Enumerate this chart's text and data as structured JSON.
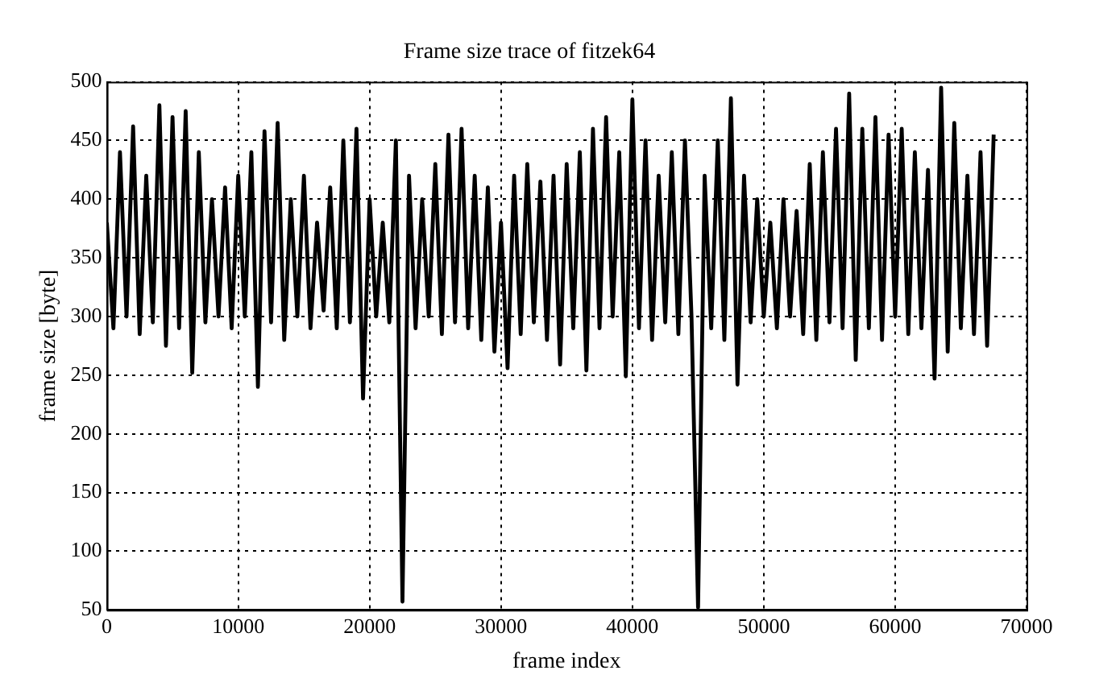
{
  "chart_data": {
    "type": "line",
    "title": "Frame size trace of fitzek64",
    "xlabel": "frame index",
    "ylabel": "frame size [byte]",
    "xlim": [
      0,
      70000
    ],
    "xticks": [
      0,
      10000,
      20000,
      30000,
      40000,
      50000,
      60000,
      70000
    ],
    "ylim": [
      50,
      500
    ],
    "yticks": [
      50,
      100,
      150,
      200,
      250,
      300,
      350,
      400,
      450,
      500
    ],
    "grid": true,
    "legend": false,
    "marker": "none",
    "line_style": "solid",
    "series": [
      {
        "color": "#000000",
        "x": [
          0,
          500,
          1000,
          1500,
          2000,
          2500,
          3000,
          3500,
          4000,
          4500,
          5000,
          5500,
          6000,
          6500,
          7000,
          7500,
          8000,
          8500,
          9000,
          9500,
          10000,
          10500,
          11000,
          11500,
          12000,
          12500,
          13000,
          13500,
          14000,
          14500,
          15000,
          15500,
          16000,
          16500,
          17000,
          17500,
          18000,
          18500,
          19000,
          19500,
          20000,
          20500,
          21000,
          21500,
          22000,
          22500,
          23000,
          23500,
          24000,
          24500,
          25000,
          25500,
          26000,
          26500,
          27000,
          27500,
          28000,
          28500,
          29000,
          29500,
          30000,
          30500,
          31000,
          31500,
          32000,
          32500,
          33000,
          33500,
          34000,
          34500,
          35000,
          35500,
          36000,
          36500,
          37000,
          37500,
          38000,
          38500,
          39000,
          39500,
          40000,
          40500,
          41000,
          41500,
          42000,
          42500,
          43000,
          43500,
          44000,
          44500,
          45000,
          45500,
          46000,
          46500,
          47000,
          47500,
          48000,
          48500,
          49000,
          49500,
          50000,
          50500,
          51000,
          51500,
          52000,
          52500,
          53000,
          53500,
          54000,
          54500,
          55000,
          55500,
          56000,
          56500,
          57000,
          57500,
          58000,
          58500,
          59000,
          59500,
          60000,
          60500,
          61000,
          61500,
          62000,
          62500,
          63000,
          63500,
          64000,
          64500,
          65000,
          65500,
          66000,
          66500,
          67000,
          67500
        ],
        "values": [
          380,
          290,
          440,
          300,
          462,
          285,
          420,
          295,
          480,
          275,
          470,
          290,
          475,
          252,
          440,
          295,
          400,
          300,
          410,
          290,
          420,
          300,
          440,
          240,
          458,
          295,
          465,
          280,
          400,
          300,
          420,
          290,
          380,
          305,
          410,
          290,
          450,
          295,
          460,
          230,
          400,
          300,
          380,
          295,
          450,
          57,
          420,
          290,
          400,
          300,
          430,
          285,
          455,
          295,
          460,
          290,
          420,
          280,
          410,
          270,
          380,
          256,
          420,
          285,
          430,
          295,
          415,
          280,
          420,
          259,
          430,
          290,
          440,
          254,
          460,
          290,
          470,
          300,
          440,
          249,
          485,
          290,
          450,
          280,
          420,
          295,
          440,
          285,
          450,
          300,
          52,
          420,
          290,
          450,
          280,
          486,
          242,
          420,
          295,
          400,
          300,
          380,
          290,
          400,
          300,
          390,
          285,
          430,
          280,
          440,
          295,
          460,
          290,
          490,
          263,
          460,
          290,
          470,
          280,
          455,
          300,
          460,
          285,
          440,
          290,
          425,
          247,
          495,
          270,
          465,
          290,
          420,
          285,
          440,
          275,
          455
        ]
      }
    ]
  }
}
